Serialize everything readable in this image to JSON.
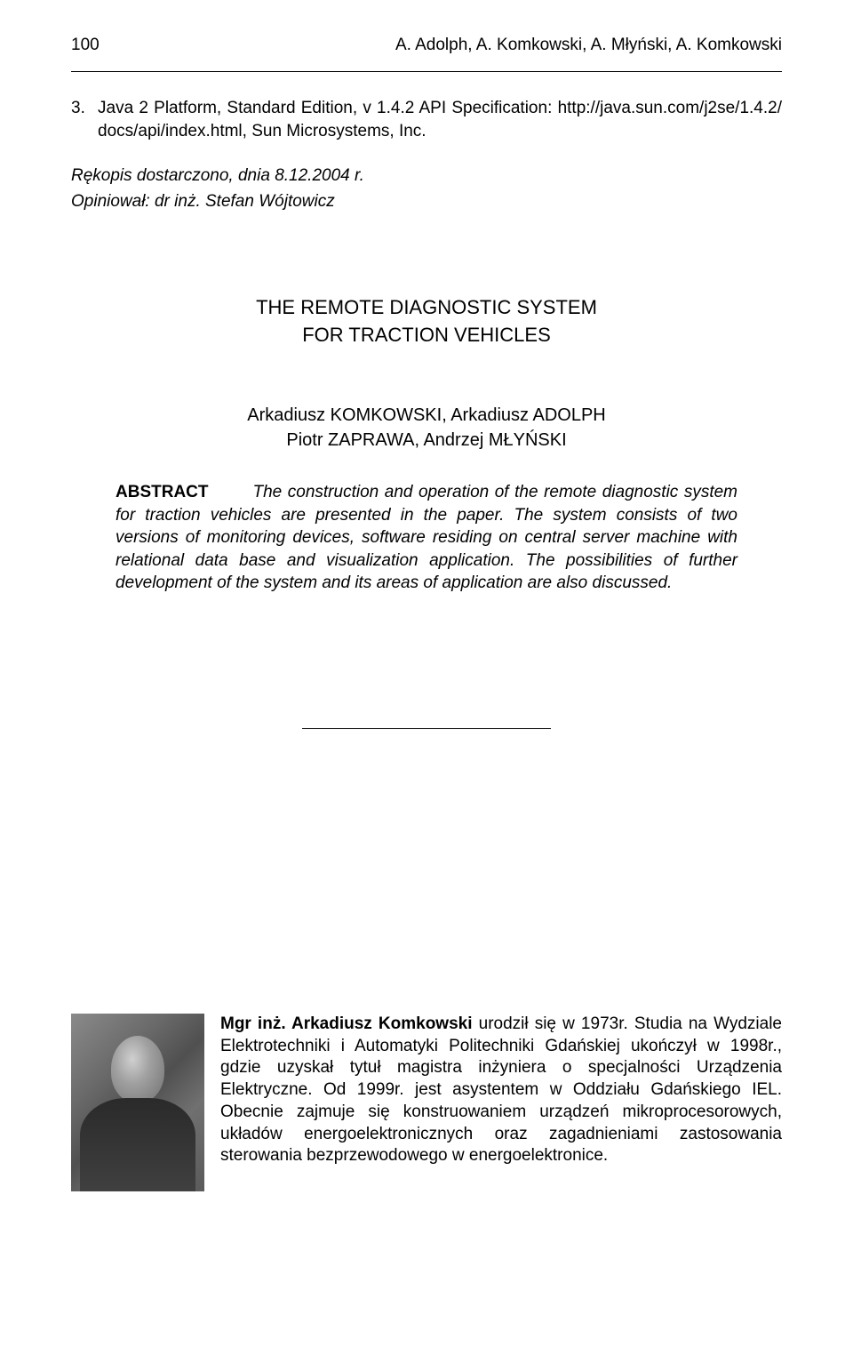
{
  "header": {
    "page_number": "100",
    "running_authors": "A. Adolph, A. Komkowski, A. Młyński, A. Komkowski"
  },
  "reference": {
    "number": "3.",
    "text": "Java 2 Platform, Standard Edition, v 1.4.2 API Specification: http://java.sun.com/j2se/1.4.2/ docs/api/index.html, Sun Microsystems, Inc."
  },
  "manuscript": {
    "received": "Rękopis dostarczono, dnia 8.12.2004 r.",
    "reviewer": "Opiniował: dr inż. Stefan Wójtowicz"
  },
  "title": {
    "line1": "THE REMOTE DIAGNOSTIC SYSTEM",
    "line2": "FOR TRACTION VEHICLES"
  },
  "authors": {
    "line1": "Arkadiusz KOMKOWSKI, Arkadiusz ADOLPH",
    "line2": "Piotr ZAPRAWA, Andrzej MŁYŃSKI"
  },
  "abstract": {
    "label": "ABSTRACT",
    "text": "The construction and operation of the remote diagnostic system for traction vehicles are presented in the paper. The system consists of two versions of monitoring devices, software residing on central server machine with relational data base and visualization application. The possibilities of further development of the system and its areas of application are also discussed."
  },
  "bio": {
    "name": "Mgr inż. Arkadiusz Komkowski",
    "text": " urodził się w 1973r. Studia na Wydziale Elektrotechniki i Automatyki Politechniki Gdańskiej ukończył w 1998r., gdzie uzyskał tytuł magistra inżyniera o specjalności Urządzenia Elektryczne. Od 1999r. jest asystentem w Oddziału Gdańskiego IEL. Obecnie zajmuje się konstruowaniem urządzeń mikroprocesorowych, układów energoelektronicznych oraz zagadnieniami zastosowania sterowania bezprzewodowego w energoelektronice."
  },
  "colors": {
    "text": "#000000",
    "background": "#ffffff",
    "divider": "#000000"
  },
  "typography": {
    "body_fontsize": 19,
    "title_fontsize": 22,
    "authors_fontsize": 20,
    "font_family": "Arial"
  }
}
